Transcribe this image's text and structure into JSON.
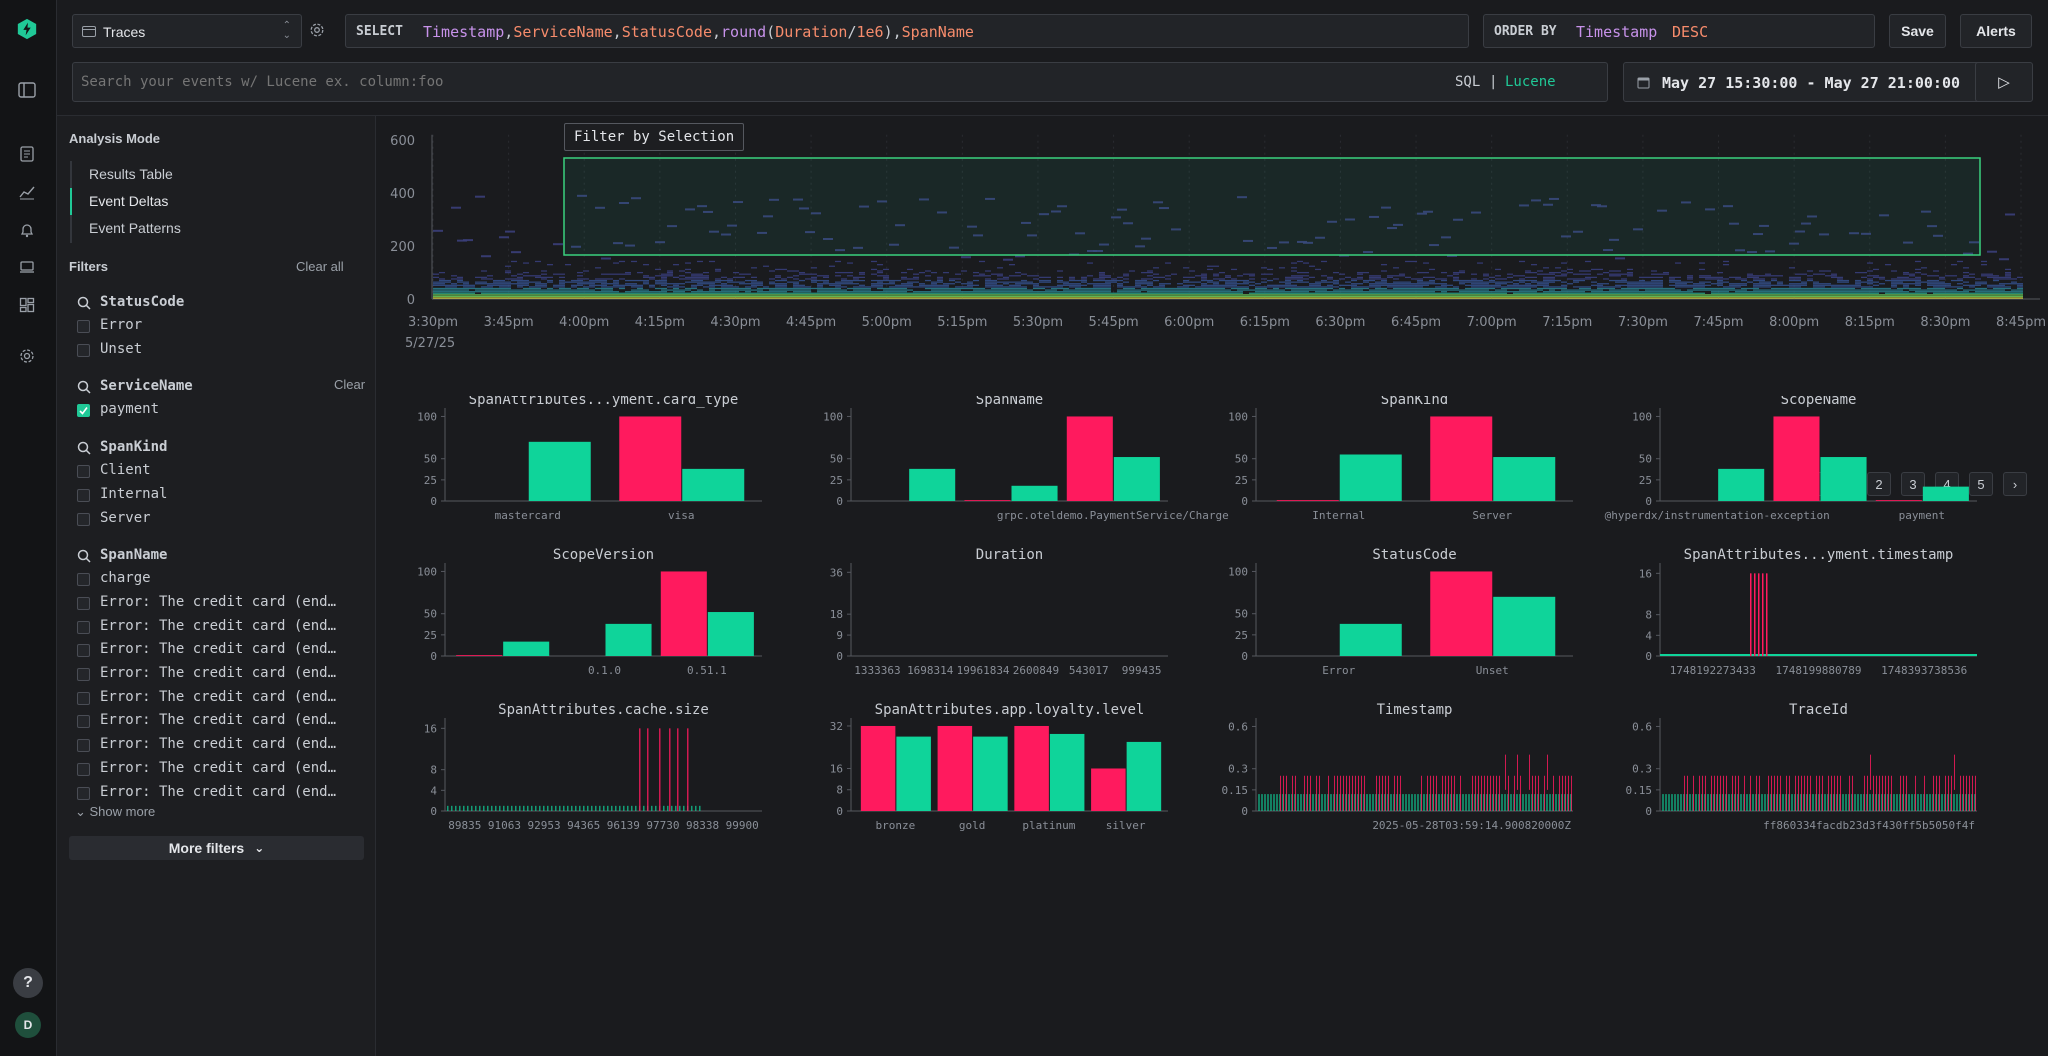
{
  "source": {
    "label": "Traces"
  },
  "select": {
    "keyword": "SELECT",
    "query": "Timestamp,ServiceName,StatusCode,round(Duration/1e6),SpanName"
  },
  "order_by": {
    "keyword": "ORDER BY",
    "field": "Timestamp",
    "direction": "DESC"
  },
  "buttons": {
    "save": "Save",
    "alerts": "Alerts",
    "play": "▷",
    "more_filters": "More filters",
    "show_more": "Show more",
    "clear_all": "Clear all",
    "clear": "Clear"
  },
  "search": {
    "placeholder": "Search your events w/ Lucene ex. column:foo",
    "mode_sql": "SQL",
    "mode_sep": "|",
    "mode_lucene": "Lucene"
  },
  "time_range": "May 27 15:30:00 - May 27 21:00:00",
  "sidebar": {
    "analysis_title": "Analysis Mode",
    "modes": [
      "Results Table",
      "Event Deltas",
      "Event Patterns"
    ],
    "filters_title": "Filters",
    "groups": [
      {
        "name": "StatusCode",
        "options": [
          {
            "label": "Error",
            "checked": false
          },
          {
            "label": "Unset",
            "checked": false
          }
        ]
      },
      {
        "name": "ServiceName",
        "options": [
          {
            "label": "payment",
            "checked": true
          }
        ]
      },
      {
        "name": "SpanKind",
        "options": [
          {
            "label": "Client",
            "checked": false
          },
          {
            "label": "Internal",
            "checked": false
          },
          {
            "label": "Server",
            "checked": false
          }
        ]
      },
      {
        "name": "SpanName",
        "options": [
          {
            "label": "charge",
            "checked": false
          },
          {
            "label": "Error: The credit card (end…",
            "checked": false
          },
          {
            "label": "Error: The credit card (end…",
            "checked": false
          },
          {
            "label": "Error: The credit card (end…",
            "checked": false
          },
          {
            "label": "Error: The credit card (end…",
            "checked": false
          },
          {
            "label": "Error: The credit card (end…",
            "checked": false
          },
          {
            "label": "Error: The credit card (end…",
            "checked": false
          },
          {
            "label": "Error: The credit card (end…",
            "checked": false
          },
          {
            "label": "Error: The credit card (end…",
            "checked": false
          },
          {
            "label": "Error: The credit card (end…",
            "checked": false
          }
        ]
      }
    ]
  },
  "heatmap": {
    "tooltip": "Filter by Selection",
    "y_ticks": [
      "600",
      "400",
      "200",
      "0"
    ],
    "x_ticks": [
      "3:30pm",
      "3:45pm",
      "4:00pm",
      "4:15pm",
      "4:30pm",
      "4:45pm",
      "5:00pm",
      "5:15pm",
      "5:30pm",
      "5:45pm",
      "6:00pm",
      "6:15pm",
      "6:30pm",
      "6:45pm",
      "7:00pm",
      "7:15pm",
      "7:30pm",
      "7:45pm",
      "8:00pm",
      "8:15pm",
      "8:30pm",
      "8:45pm"
    ],
    "date_label": "5/27/25"
  },
  "pagination": {
    "prev": "‹",
    "pages": [
      "1",
      "2",
      "3",
      "4",
      "5"
    ],
    "next": "›"
  },
  "colors": {
    "selection": "#ff1a5e",
    "background": "#0fd49a",
    "accent": "#20c997"
  },
  "chart_data": [
    {
      "type": "bar",
      "title": "SpanAttributes...yment.card_type",
      "y_ticks": [
        "100",
        "50",
        "25",
        "0"
      ],
      "ylim": [
        0,
        110
      ],
      "categories": [
        "mastercard",
        "visa"
      ],
      "x_labels": [
        "mastercard",
        "visa"
      ],
      "series": [
        {
          "values": [
            0,
            100
          ]
        },
        {
          "values": [
            70,
            38
          ]
        }
      ]
    },
    {
      "type": "bar",
      "title": "SpanName",
      "y_ticks": [
        "100",
        "50",
        "25",
        "0"
      ],
      "ylim": [
        0,
        110
      ],
      "categories": [
        "a",
        "b",
        "grpc.oteldemo.PaymentService/Charge"
      ],
      "x_labels": [
        "",
        "",
        "grpc.oteldemo.PaymentService/Charge"
      ],
      "series": [
        {
          "values": [
            0,
            1,
            100
          ]
        },
        {
          "values": [
            38,
            18,
            52
          ]
        }
      ]
    },
    {
      "type": "bar",
      "title": "SpanKind",
      "y_ticks": [
        "100",
        "50",
        "25",
        "0"
      ],
      "ylim": [
        0,
        110
      ],
      "categories": [
        "Internal",
        "Server"
      ],
      "x_labels": [
        "Internal",
        "Server"
      ],
      "series": [
        {
          "values": [
            1,
            100
          ]
        },
        {
          "values": [
            55,
            52
          ]
        }
      ]
    },
    {
      "type": "bar",
      "title": "ScopeName",
      "y_ticks": [
        "100",
        "50",
        "25",
        "0"
      ],
      "ylim": [
        0,
        110
      ],
      "categories": [
        "@hyperdx/instrumentation-exception",
        "m",
        "payment"
      ],
      "x_labels": [
        "@hyperdx/instrumentation-exception",
        "",
        "payment"
      ],
      "series": [
        {
          "values": [
            0,
            100,
            1
          ]
        },
        {
          "values": [
            38,
            52,
            17
          ]
        }
      ]
    },
    {
      "type": "bar",
      "title": "ScopeVersion",
      "y_ticks": [
        "100",
        "50",
        "25",
        "0"
      ],
      "ylim": [
        0,
        110
      ],
      "categories": [
        "a",
        "0.1.0",
        "0.51.1"
      ],
      "x_labels": [
        "",
        "0.1.0",
        "0.51.1"
      ],
      "series": [
        {
          "values": [
            1,
            0,
            100
          ]
        },
        {
          "values": [
            17,
            38,
            52
          ]
        }
      ]
    },
    {
      "type": "bar",
      "title": "Duration",
      "y_ticks": [
        "36",
        "18",
        "9",
        "0"
      ],
      "ylim": [
        0,
        40
      ],
      "categories": [
        "1333363",
        "1698314",
        "19961834",
        "2600849",
        "543017",
        "999435"
      ],
      "x_labels": [
        "1333363",
        "1698314",
        "19961834",
        "2600849",
        "543017",
        "999435"
      ],
      "series": [
        {
          "values": [
            0,
            0,
            0,
            0,
            0,
            0
          ]
        },
        {
          "values": [
            0,
            0,
            0,
            0,
            0,
            0
          ]
        }
      ]
    },
    {
      "type": "bar",
      "title": "StatusCode",
      "y_ticks": [
        "100",
        "50",
        "25",
        "0"
      ],
      "ylim": [
        0,
        110
      ],
      "categories": [
        "Error",
        "Unset"
      ],
      "x_labels": [
        "Error",
        "Unset"
      ],
      "series": [
        {
          "values": [
            0,
            100
          ]
        },
        {
          "values": [
            38,
            70
          ]
        }
      ]
    },
    {
      "type": "bar",
      "title": "SpanAttributes...yment.timestamp",
      "y_ticks": [
        "16",
        "8",
        "4",
        "0"
      ],
      "ylim": [
        0,
        18
      ],
      "categories": [
        "1748192273433",
        "1748199880789",
        "1748393738536"
      ],
      "x_labels": [
        "1748192273433",
        "1748199880789",
        "1748393738536"
      ],
      "series": [
        {
          "values": [
            16,
            0,
            0
          ]
        },
        {
          "values": [
            0.3,
            0.3,
            0.3
          ]
        }
      ]
    },
    {
      "type": "bar",
      "title": "SpanAttributes.cache.size",
      "y_ticks": [
        "16",
        "8",
        "4",
        "0"
      ],
      "ylim": [
        0,
        18
      ],
      "categories": [
        "89835",
        "91063",
        "92953",
        "94365",
        "96139",
        "97730",
        "98338",
        "99900"
      ],
      "x_labels": [
        "89835",
        "91063",
        "92953",
        "94365",
        "96139",
        "97730",
        "98338",
        "99900"
      ],
      "series": [
        {
          "values": [
            0,
            0,
            0,
            0,
            0,
            0,
            16,
            16
          ]
        },
        {
          "values": [
            1,
            1,
            1,
            1,
            1,
            1,
            0,
            0
          ]
        }
      ]
    },
    {
      "type": "bar",
      "title": "SpanAttributes.app.loyalty.level",
      "y_ticks": [
        "32",
        "16",
        "8",
        "0"
      ],
      "ylim": [
        0,
        35
      ],
      "categories": [
        "bronze",
        "gold",
        "platinum",
        "silver"
      ],
      "x_labels": [
        "bronze",
        "gold",
        "platinum",
        "silver"
      ],
      "series": [
        {
          "values": [
            32,
            32,
            32,
            16
          ]
        },
        {
          "values": [
            28,
            28,
            29,
            26
          ]
        }
      ]
    },
    {
      "type": "bar",
      "title": "Timestamp",
      "y_ticks": [
        "0.6",
        "0.3",
        "0.15",
        "0"
      ],
      "ylim": [
        0,
        0.66
      ],
      "categories": [
        "2025-05-28T03:59:14.900820000Z"
      ],
      "x_labels": [
        "2025-05-28T03:59:14.900820000Z"
      ],
      "series": [
        {
          "values": [
            0.25
          ]
        },
        {
          "values": [
            0.12
          ]
        }
      ]
    },
    {
      "type": "bar",
      "title": "TraceId",
      "y_ticks": [
        "0.6",
        "0.3",
        "0.15",
        "0"
      ],
      "ylim": [
        0,
        0.66
      ],
      "categories": [
        "ff860334facdb23d3f430ff5b5050f4f"
      ],
      "x_labels": [
        "ff860334facdb23d3f430ff5b5050f4f"
      ],
      "series": [
        {
          "values": [
            0.25
          ]
        },
        {
          "values": [
            0.12
          ]
        }
      ]
    }
  ],
  "user": {
    "initial": "D"
  },
  "help": "?"
}
